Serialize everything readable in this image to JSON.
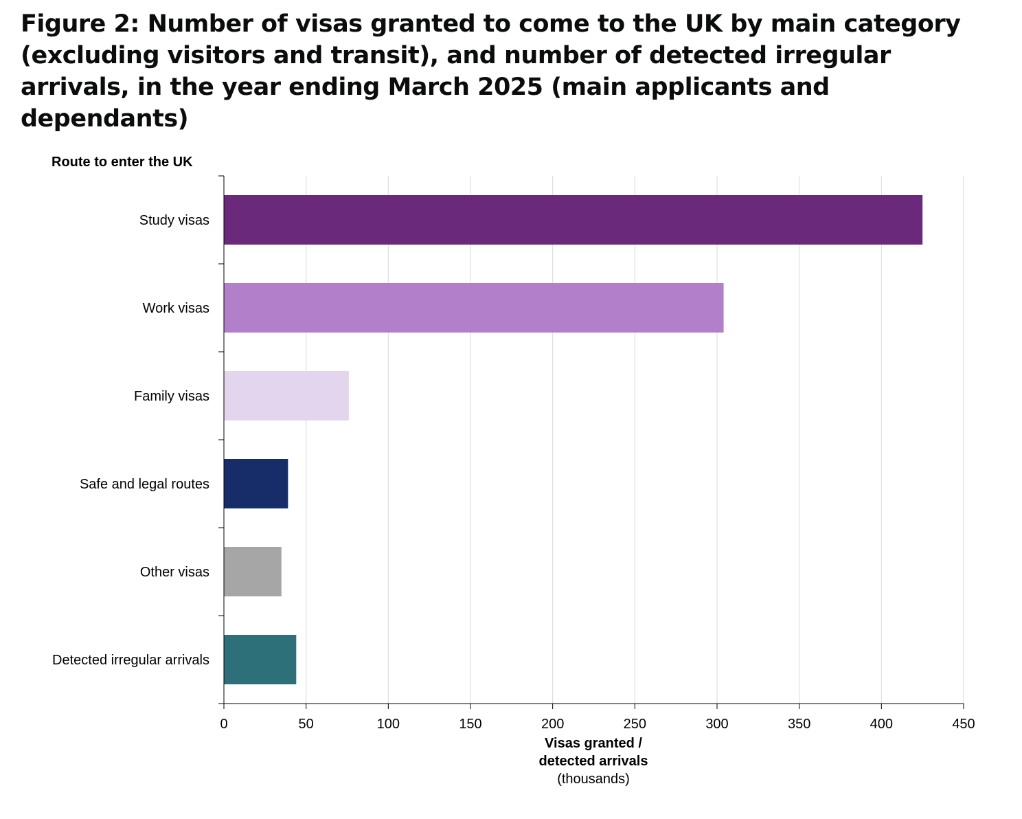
{
  "chart_data": {
    "type": "bar",
    "orientation": "horizontal",
    "title": "Figure 2: Number of visas granted to come to the UK by main category (excluding visitors and transit), and number of detected irregular arrivals, in the year ending March 2025 (main applicants and dependants)",
    "ylabel": "Route to enter the UK",
    "xlabel": [
      "Visas granted /",
      "detected arrivals"
    ],
    "xlabel_unit": "(thousands)",
    "xlim": [
      0,
      450
    ],
    "xticks": [
      0,
      50,
      100,
      150,
      200,
      250,
      300,
      350,
      400,
      450
    ],
    "grid": true,
    "categories": [
      "Study visas",
      "Work visas",
      "Family visas",
      "Safe and legal routes",
      "Other visas",
      "Detected irregular arrivals"
    ],
    "values": [
      425,
      304,
      76,
      39,
      35,
      44
    ],
    "colors": [
      "#6a297b",
      "#b27fcb",
      "#e4d5ee",
      "#162d69",
      "#a6a6a6",
      "#2e7079"
    ]
  }
}
